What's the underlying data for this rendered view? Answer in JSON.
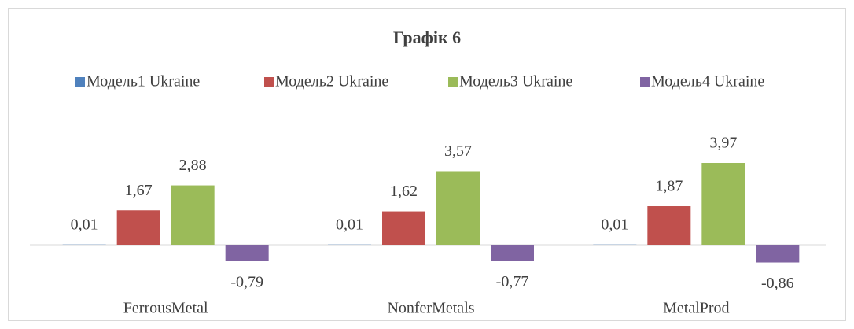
{
  "chart_data": {
    "type": "bar",
    "title": "Графік 6",
    "categories": [
      "FerrousMetal",
      "NonferMetals",
      "MetalProd"
    ],
    "series": [
      {
        "name": "Модель1 Ukraine",
        "color": "#4f81bd",
        "values": [
          0.01,
          0.01,
          0.01
        ],
        "value_labels": [
          "0,01",
          "0,01",
          "0,01"
        ]
      },
      {
        "name": "Модель2 Ukraine",
        "color": "#c0504d",
        "values": [
          1.67,
          1.62,
          1.87
        ],
        "value_labels": [
          "1,67",
          "1,62",
          "1,87"
        ]
      },
      {
        "name": "Модель3 Ukraine",
        "color": "#9bbb59",
        "values": [
          2.88,
          3.57,
          3.97
        ],
        "value_labels": [
          "2,88",
          "3,57",
          "3,97"
        ]
      },
      {
        "name": "Модель4 Ukraine",
        "color": "#8064a2",
        "values": [
          -0.79,
          -0.77,
          -0.86
        ],
        "value_labels": [
          "-0,79",
          "-0,77",
          "-0,86"
        ]
      }
    ],
    "legend": "top"
  }
}
